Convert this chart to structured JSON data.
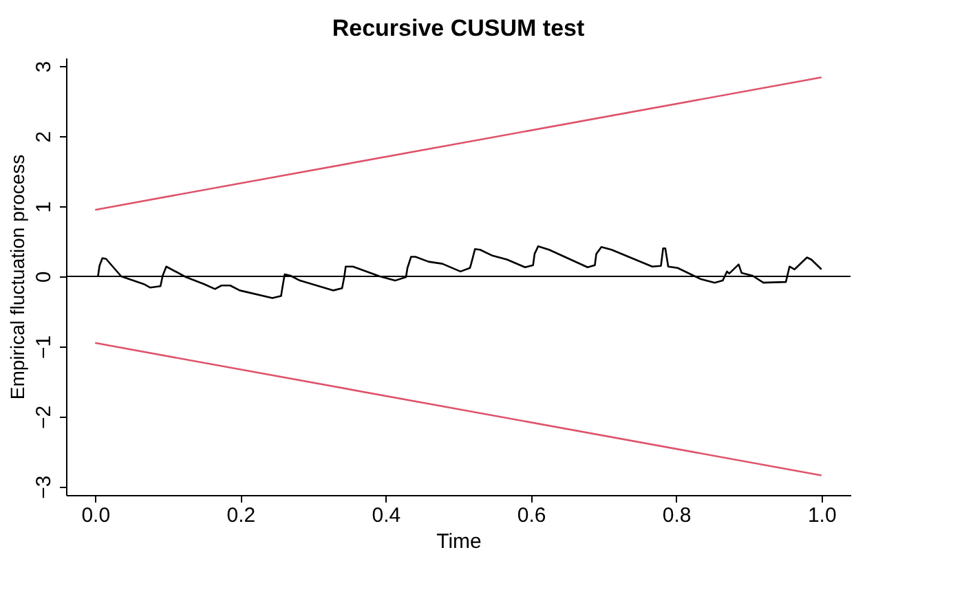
{
  "chart_data": {
    "type": "line",
    "title": "Recursive CUSUM test",
    "xlabel": "Time",
    "ylabel": "Empirical fluctuation process",
    "xlim": [
      -0.04,
      1.04
    ],
    "ylim": [
      -3.12,
      3.12
    ],
    "xticks": [
      {
        "value": 0,
        "label": "0.0"
      },
      {
        "value": 0.2,
        "label": "0.2"
      },
      {
        "value": 0.4,
        "label": "0.4"
      },
      {
        "value": 0.6,
        "label": "0.6"
      },
      {
        "value": 0.8,
        "label": "0.8"
      },
      {
        "value": 1,
        "label": "1.0"
      }
    ],
    "yticks": [
      -3,
      -2,
      -1,
      0,
      1,
      2,
      3
    ],
    "grid": false,
    "legend": false,
    "series": [
      {
        "color": "#000000",
        "x": [
          0.004,
          0.006,
          0.01,
          0.015,
          0.036,
          0.067,
          0.076,
          0.09,
          0.093,
          0.098,
          0.125,
          0.15,
          0.165,
          0.174,
          0.186,
          0.199,
          0.244,
          0.256,
          0.258,
          0.261,
          0.269,
          0.282,
          0.328,
          0.34,
          0.343,
          0.345,
          0.355,
          0.392,
          0.413,
          0.428,
          0.43,
          0.435,
          0.441,
          0.459,
          0.478,
          0.503,
          0.516,
          0.518,
          0.523,
          0.53,
          0.546,
          0.567,
          0.592,
          0.603,
          0.605,
          0.61,
          0.625,
          0.678,
          0.688,
          0.69,
          0.697,
          0.711,
          0.767,
          0.779,
          0.782,
          0.785,
          0.789,
          0.802,
          0.834,
          0.853,
          0.864,
          0.87,
          0.873,
          0.886,
          0.89,
          0.905,
          0.92,
          0.951,
          0.956,
          0.963,
          0.98,
          0.986,
          1.0
        ],
        "values": [
          0,
          0.15,
          0.26,
          0.25,
          0,
          -0.11,
          -0.16,
          -0.14,
          0.01,
          0.14,
          -0.01,
          -0.11,
          -0.18,
          -0.13,
          -0.13,
          -0.2,
          -0.31,
          -0.28,
          -0.15,
          0.03,
          0.01,
          -0.06,
          -0.2,
          -0.17,
          -0.01,
          0.14,
          0.14,
          0,
          -0.06,
          -0.01,
          0.12,
          0.28,
          0.28,
          0.21,
          0.18,
          0.07,
          0.12,
          0.19,
          0.39,
          0.38,
          0.3,
          0.24,
          0.13,
          0.16,
          0.32,
          0.43,
          0.38,
          0.13,
          0.16,
          0.32,
          0.42,
          0.38,
          0.14,
          0.15,
          0.4,
          0.4,
          0.14,
          0.12,
          -0.04,
          -0.09,
          -0.06,
          0.07,
          0.04,
          0.17,
          0.05,
          0.01,
          -0.09,
          -0.08,
          0.14,
          0.1,
          0.27,
          0.24,
          0.1
        ]
      },
      {
        "color": "#df536b",
        "x": [
          0,
          1
        ],
        "values": [
          0.95,
          2.84
        ]
      },
      {
        "color": "#df536b",
        "x": [
          0,
          1
        ],
        "values": [
          -0.95,
          -2.84
        ]
      }
    ],
    "ref_lines": [
      {
        "axis": "y",
        "value": 0,
        "color": "#000000"
      }
    ]
  }
}
